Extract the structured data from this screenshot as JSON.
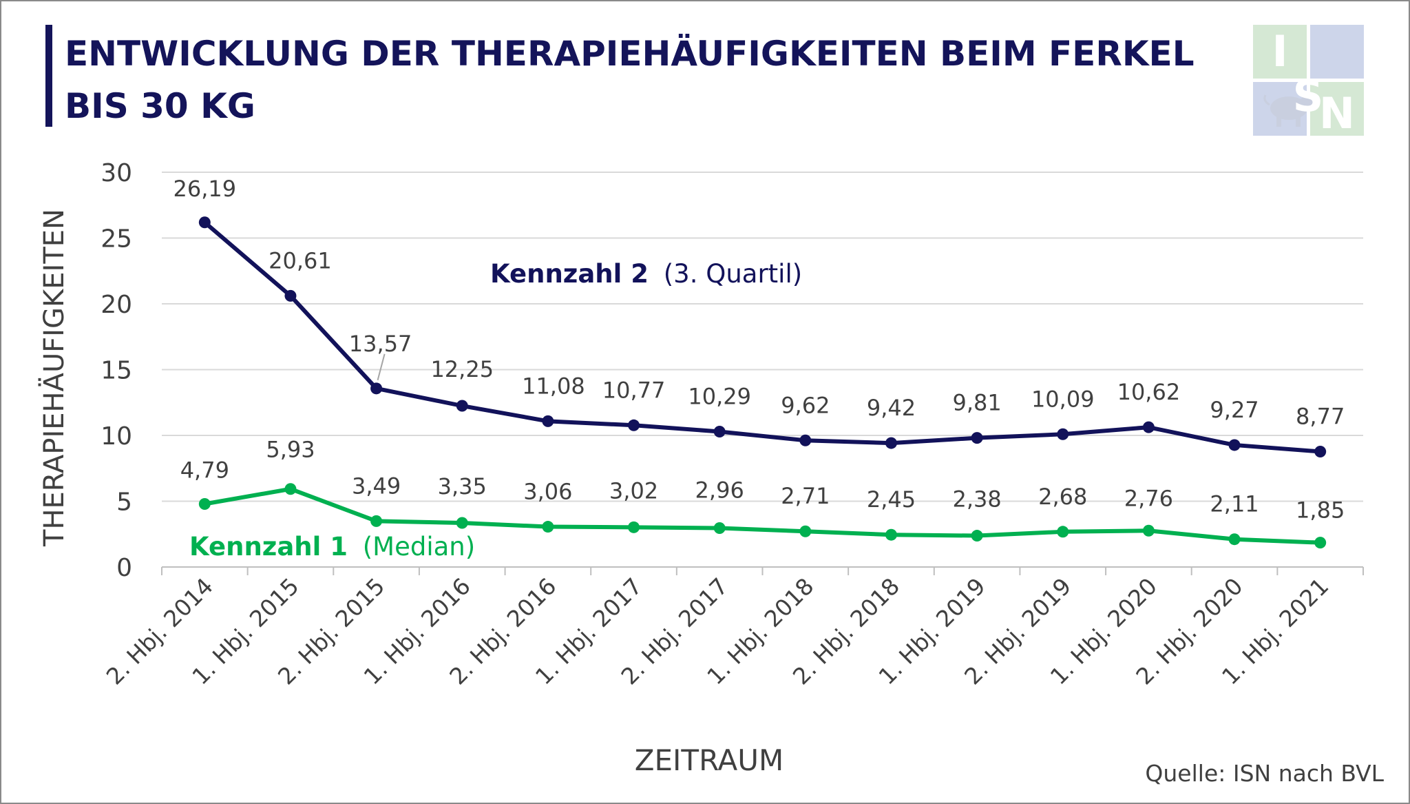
{
  "title_lines": [
    "ENTWICKLUNG DER THERAPIEHÄUFIGKEITEN BEIM FERKEL",
    "BIS 30 KG"
  ],
  "source": "Quelle: ISN nach BVL",
  "logo": {
    "letters": [
      "I",
      "S",
      "N"
    ],
    "icon": "pig-icon"
  },
  "colors": {
    "title": "#14145a",
    "series2": "#12125a",
    "series1": "#00b050",
    "grid": "#d9d9d9",
    "text": "#404040"
  },
  "chart_data": {
    "type": "line",
    "title": "ENTWICKLUNG DER THERAPIEHÄUFIGKEITEN BEIM FERKEL BIS 30 KG",
    "xlabel": "ZEITRAUM",
    "ylabel": "THERAPIEHÄUFIGKEITEN",
    "ylim": [
      0,
      30
    ],
    "yticks": [
      0,
      5,
      10,
      15,
      20,
      25,
      30
    ],
    "grid": true,
    "categories": [
      "2. Hbj. 2014",
      "1. Hbj. 2015",
      "2. Hbj. 2015",
      "1. Hbj. 2016",
      "2. Hbj. 2016",
      "1. Hbj. 2017",
      "2. Hbj. 2017",
      "1. Hbj. 2018",
      "2. Hbj. 2018",
      "1. Hbj. 2019",
      "2. Hbj. 2019",
      "1. Hbj. 2020",
      "2. Hbj. 2020",
      "1. Hbj. 2021"
    ],
    "series": [
      {
        "name": "Kennzahl 2",
        "name_suffix": "(3. Quartil)",
        "color": "#12125a",
        "values": [
          26.19,
          20.61,
          13.57,
          12.25,
          11.08,
          10.77,
          10.29,
          9.62,
          9.42,
          9.81,
          10.09,
          10.62,
          9.27,
          8.77
        ],
        "labels": [
          "26,19",
          "20,61",
          "13,57",
          "12,25",
          "11,08",
          "10,77",
          "10,29",
          "9,62",
          "9,42",
          "9,81",
          "10,09",
          "10,62",
          "9,27",
          "8,77"
        ]
      },
      {
        "name": "Kennzahl 1",
        "name_suffix": "(Median)",
        "color": "#00b050",
        "values": [
          4.79,
          5.93,
          3.49,
          3.35,
          3.06,
          3.02,
          2.96,
          2.71,
          2.45,
          2.38,
          2.68,
          2.76,
          2.11,
          1.85
        ],
        "labels": [
          "4,79",
          "5,93",
          "3,49",
          "3,35",
          "3,06",
          "3,02",
          "2,96",
          "2,71",
          "2,45",
          "2,38",
          "2,68",
          "2,76",
          "2,11",
          "1,85"
        ]
      }
    ]
  }
}
